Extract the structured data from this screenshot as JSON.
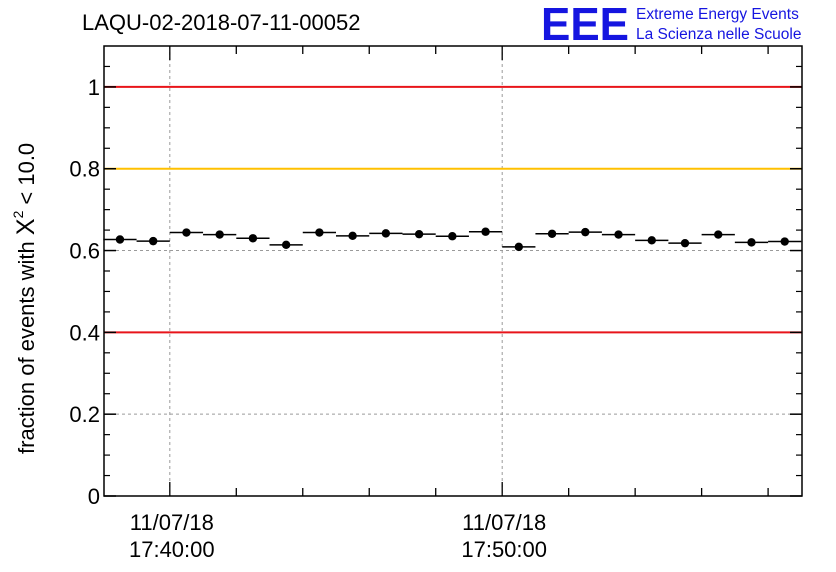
{
  "chart_data": {
    "type": "scatter",
    "title": "LAQU-02-2018-07-11-00052",
    "ylabel_main": "fraction of events with",
    "ylabel_chi": "X",
    "ylabel_sup": "2",
    "ylabel_tail": "< 10.0",
    "xlabel": "",
    "ylim": [
      0,
      1.1
    ],
    "yticks": [
      0,
      0.2,
      0.4,
      0.6,
      0.8,
      1
    ],
    "ytick_labels": [
      "0",
      "0.2",
      "0.4",
      "0.6",
      "0.8",
      "1"
    ],
    "xlim_minutes": [
      -1.98,
      19.02
    ],
    "xtick_major_minutes": [
      0,
      10
    ],
    "xtick_labels": [
      {
        "date": "11/07/18",
        "time": "17:40:00"
      },
      {
        "date": "11/07/18",
        "time": "17:50:00"
      }
    ],
    "xtick_minor_step_minutes": 2,
    "bin_width_minutes": 1,
    "grid": true,
    "reference_lines": [
      {
        "y": 1.0,
        "color": "#e8141a"
      },
      {
        "y": 0.8,
        "color": "#ffc000"
      },
      {
        "y": 0.4,
        "color": "#e8141a"
      }
    ],
    "series": [
      {
        "name": "fraction",
        "x_minutes": [
          -1.5,
          -0.5,
          0.5,
          1.5,
          2.5,
          3.5,
          4.5,
          5.5,
          6.5,
          7.5,
          8.5,
          9.5,
          10.5,
          11.5,
          12.5,
          13.5,
          14.5,
          15.5,
          16.5,
          17.5,
          18.5
        ],
        "values": [
          0.627,
          0.623,
          0.644,
          0.639,
          0.63,
          0.614,
          0.644,
          0.636,
          0.642,
          0.64,
          0.635,
          0.646,
          0.609,
          0.641,
          0.645,
          0.639,
          0.625,
          0.618,
          0.639,
          0.62,
          0.622
        ],
        "errors": [
          0.006,
          0.006,
          0.006,
          0.006,
          0.006,
          0.006,
          0.006,
          0.006,
          0.006,
          0.006,
          0.006,
          0.006,
          0.006,
          0.006,
          0.006,
          0.006,
          0.006,
          0.006,
          0.006,
          0.006,
          0.006
        ]
      }
    ]
  },
  "logo": {
    "mark": "EEE",
    "line1": "Extreme Energy Events",
    "line2": "La Scienza nelle Scuole",
    "color": "#1515e0"
  }
}
